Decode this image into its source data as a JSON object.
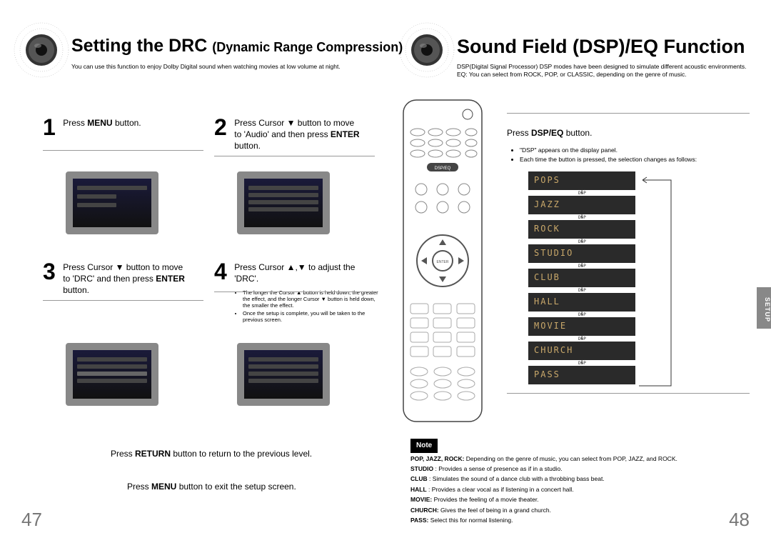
{
  "left": {
    "title_main": "Setting the DRC ",
    "title_sub": "(Dynamic Range Compression)",
    "desc": "You can use this function to enjoy Dolby Digital sound when watching movies at low volume at night.",
    "steps": {
      "s1": {
        "num": "1",
        "text": "Press <b>MENU</b> button."
      },
      "s2": {
        "num": "2",
        "text": "Press Cursor ▼ button to move to 'Audio' and then press <b>ENTER</b> button."
      },
      "s3": {
        "num": "3",
        "text": "Press Cursor ▼ button to move to 'DRC' and then press <b>ENTER</b> button."
      },
      "s4": {
        "num": "4",
        "text": "Press Cursor ▲,▼ to adjust the 'DRC'."
      }
    },
    "s4_bullets": [
      "The longer the Cursor ▲ button is held down, the greater the effect, and the longer Cursor ▼ button is held down, the smaller the effect.",
      "Once the setup is complete, you will be taken to the previous screen."
    ],
    "return_text": "Press <b>RETURN</b> button to return to the previous level.",
    "menu_text": "Press <b>MENU</b> button to exit the setup screen.",
    "page_num": "47"
  },
  "right": {
    "title": "Sound Field (DSP)/EQ Function",
    "desc": "DSP(Digital Signal Processor) DSP modes have been designed to simulate different acoustic environments.\nEQ: You can select from ROCK, POP, or CLASSIC, depending on the genre of music.",
    "dsp_title": "Press <b>DSP/EQ</b> button.",
    "dsp_bullets": [
      "\"DSP\" appears on the display panel.",
      "Each time the button is pressed, the selection changes as follows:"
    ],
    "dsp_modes": [
      "POPS",
      "JAZZ",
      "ROCK",
      "STUDIO",
      "CLUB",
      "HALL",
      "MOVIE",
      "CHURCH",
      "PASS"
    ],
    "flow_label": "DSP",
    "note_label": "Note",
    "notes": [
      "<b>POP, JAZZ, ROCK:</b> Depending on the genre of music, you can select from POP, JAZZ, and ROCK.",
      "<b>STUDIO</b> : Provides a sense of presence as if in a studio.",
      "<b>CLUB</b> : Simulates the sound of a dance club with a throbbing bass beat.",
      "<b>HALL</b> : Provides a clear vocal as if listening in a concert hall.",
      "<b>MOVIE:</b> Provides the feeling of a movie theater.",
      "<b>CHURCH:</b> Gives the feel of being in a grand church.",
      "<b>PASS:</b> Select this for normal listening."
    ],
    "setup_tab": "SETUP",
    "page_num": "48"
  },
  "colors": {
    "dsp_bg": "#2a2a2a",
    "dsp_text": "#c9a86a",
    "screenshot_border": "#888888",
    "screenshot_bg": "#1a1a3a"
  }
}
